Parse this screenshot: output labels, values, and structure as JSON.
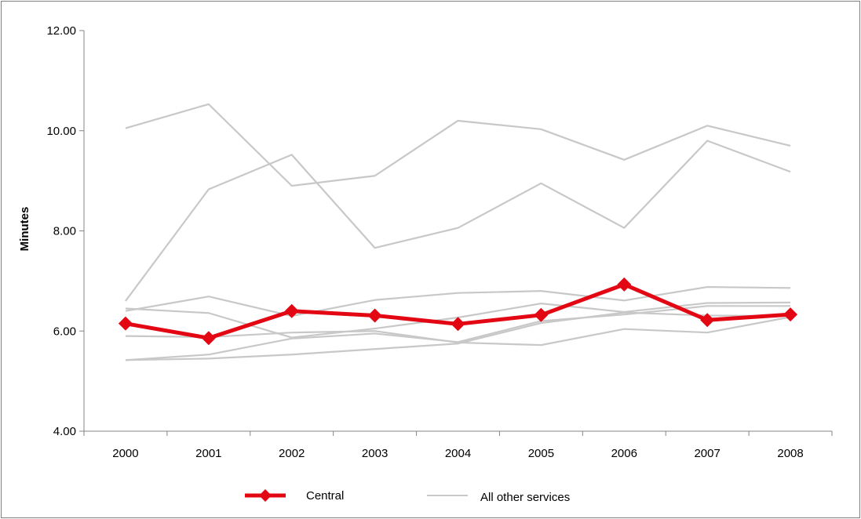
{
  "chart_data": {
    "type": "line",
    "title": "",
    "xlabel": "",
    "ylabel": "Minutes",
    "x": [
      "2000",
      "2001",
      "2002",
      "2003",
      "2004",
      "2005",
      "2006",
      "2007",
      "2008"
    ],
    "ylim": [
      4,
      12
    ],
    "yticks": [
      "4.00",
      "6.00",
      "8.00",
      "10.00",
      "12.00"
    ],
    "grid": false,
    "legend_placement": "bottom",
    "legend": [
      {
        "label": "Central",
        "color": "#e30613",
        "marker": "diamond"
      },
      {
        "label": "All other services",
        "color": "#c8c8c8",
        "marker": "none"
      }
    ],
    "highlight_series": {
      "name": "Central",
      "color": "#e30613",
      "values": [
        6.15,
        5.86,
        6.4,
        6.31,
        6.14,
        6.32,
        6.93,
        6.22,
        6.33
      ]
    },
    "other_series": {
      "name": "All other services",
      "color": "#c8c8c8",
      "lines": [
        [
          10.05,
          10.53,
          8.9,
          9.1,
          10.2,
          10.03,
          9.42,
          10.1,
          9.7
        ],
        [
          6.6,
          8.83,
          9.52,
          7.66,
          8.06,
          8.95,
          8.06,
          9.8,
          9.18
        ],
        [
          6.45,
          6.36,
          5.87,
          6.05,
          6.27,
          6.55,
          6.38,
          6.56,
          6.57
        ],
        [
          6.4,
          6.69,
          6.3,
          6.62,
          6.76,
          6.8,
          6.61,
          6.88,
          6.86
        ],
        [
          5.9,
          5.88,
          5.97,
          6.0,
          5.77,
          5.72,
          6.04,
          5.97,
          6.28
        ],
        [
          5.42,
          5.53,
          5.85,
          5.95,
          5.78,
          6.2,
          6.33,
          6.5,
          6.5
        ],
        [
          5.42,
          5.45,
          5.53,
          5.64,
          5.75,
          6.16,
          6.37,
          6.31,
          6.3
        ]
      ]
    }
  }
}
